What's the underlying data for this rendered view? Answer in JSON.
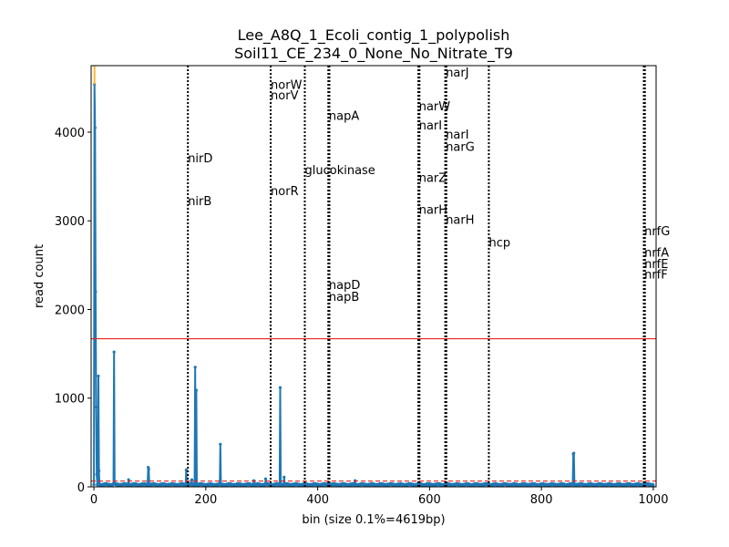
{
  "chart_data": {
    "type": "line",
    "title": "Lee_A8Q_1_Ecoli_contig_1_polypolish",
    "subtitle": "Soil11_CE_234_0_None_No_Nitrate_T9",
    "xlabel": "bin (size 0.1%=4619bp)",
    "ylabel": "read count",
    "xlim": [
      -5,
      1005
    ],
    "ylim": [
      0,
      4750
    ],
    "xticks": [
      0,
      200,
      400,
      600,
      800,
      1000
    ],
    "yticks": [
      0,
      1000,
      2000,
      3000,
      4000
    ],
    "grid": false,
    "series_color": "#1f77b4",
    "baseline": 25,
    "peaks": [
      {
        "x": 1,
        "y": 4540
      },
      {
        "x": 2,
        "y": 4050
      },
      {
        "x": 3,
        "y": 2200
      },
      {
        "x": 4,
        "y": 900
      },
      {
        "x": 5,
        "y": 140
      },
      {
        "x": 8,
        "y": 1250
      },
      {
        "x": 9,
        "y": 180
      },
      {
        "x": 36,
        "y": 1520
      },
      {
        "x": 62,
        "y": 80
      },
      {
        "x": 97,
        "y": 220
      },
      {
        "x": 98,
        "y": 200
      },
      {
        "x": 165,
        "y": 190
      },
      {
        "x": 175,
        "y": 80
      },
      {
        "x": 181,
        "y": 1350
      },
      {
        "x": 183,
        "y": 1090
      },
      {
        "x": 226,
        "y": 480
      },
      {
        "x": 286,
        "y": 70
      },
      {
        "x": 307,
        "y": 90
      },
      {
        "x": 333,
        "y": 1120
      },
      {
        "x": 340,
        "y": 110
      },
      {
        "x": 467,
        "y": 70
      },
      {
        "x": 857,
        "y": 370
      },
      {
        "x": 858,
        "y": 380
      }
    ],
    "reference_lines": [
      {
        "value": 1670,
        "style": "solid",
        "color": "#e8231c"
      },
      {
        "value": 65,
        "style": "dashed",
        "color": "#e8231c"
      }
    ],
    "highlight": {
      "x": 1,
      "y0": 4540,
      "y1": 4750,
      "color": "#ffb52e"
    },
    "gene_lines": [
      {
        "x": 168,
        "weight": 2
      },
      {
        "x": 316,
        "weight": 2
      },
      {
        "x": 377,
        "weight": 2
      },
      {
        "x": 420,
        "weight": 3.2
      },
      {
        "x": 581,
        "weight": 3.2
      },
      {
        "x": 629,
        "weight": 3.2
      },
      {
        "x": 706,
        "weight": 2
      },
      {
        "x": 984,
        "weight": 3.2
      }
    ],
    "gene_labels": [
      {
        "name": "nirD",
        "x": 168,
        "y": 3710
      },
      {
        "name": "nirB",
        "x": 168,
        "y": 3230
      },
      {
        "name": "norW",
        "x": 316,
        "y": 4540
      },
      {
        "name": "norV",
        "x": 316,
        "y": 4420
      },
      {
        "name": "norR",
        "x": 316,
        "y": 3340
      },
      {
        "name": "glucokinase",
        "x": 377,
        "y": 3580
      },
      {
        "name": "napA",
        "x": 420,
        "y": 4190
      },
      {
        "name": "napD",
        "x": 420,
        "y": 2280
      },
      {
        "name": "napB",
        "x": 420,
        "y": 2150
      },
      {
        "name": "narW",
        "x": 581,
        "y": 4300
      },
      {
        "name": "narI",
        "x": 581,
        "y": 4080
      },
      {
        "name": "narZ",
        "x": 581,
        "y": 3490
      },
      {
        "name": "narH",
        "x": 581,
        "y": 3130
      },
      {
        "name": "narJ",
        "x": 629,
        "y": 4680
      },
      {
        "name": "narI",
        "x": 629,
        "y": 3980
      },
      {
        "name": "narG",
        "x": 629,
        "y": 3840
      },
      {
        "name": "narH",
        "x": 629,
        "y": 3020
      },
      {
        "name": "hcp",
        "x": 706,
        "y": 2760
      },
      {
        "name": "nrfG",
        "x": 984,
        "y": 2890
      },
      {
        "name": "nrfA",
        "x": 984,
        "y": 2650
      },
      {
        "name": "nrfE",
        "x": 984,
        "y": 2520
      },
      {
        "name": "nrfF",
        "x": 984,
        "y": 2400
      }
    ]
  }
}
